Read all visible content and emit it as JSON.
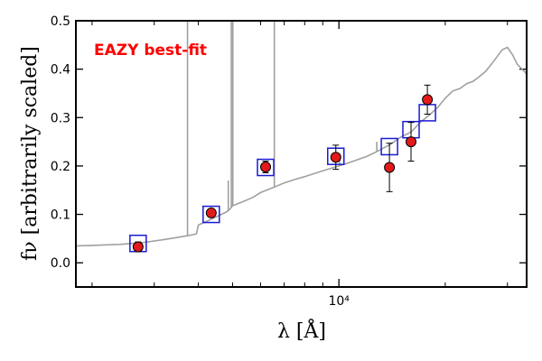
{
  "chart_data": {
    "type": "scatter",
    "annotation": "EAZY best-fit",
    "ylabel": "fν [arbitrarily scaled]",
    "xlabel": "λ [Å]",
    "xscale": "log",
    "xlim": [
      1800,
      34000
    ],
    "ylim": [
      -0.05,
      0.5
    ],
    "yticks": [
      0.0,
      0.1,
      0.2,
      0.3,
      0.4,
      0.5
    ],
    "ytick_labels": [
      "0.0",
      "0.1",
      "0.2",
      "0.3",
      "0.4",
      "0.5"
    ],
    "xtick_major": [
      10000
    ],
    "xtick_major_labels": [
      "10⁴"
    ],
    "xtick_minor": [
      2000,
      3000,
      4000,
      5000,
      6000,
      7000,
      8000,
      9000,
      20000,
      30000
    ],
    "colors": {
      "template": "#a0a0a0",
      "model_box": "#1a1ad6",
      "observed": "#e31a1c",
      "annotation": "#ff0000"
    },
    "series": [
      {
        "kind": "template",
        "points": [
          [
            1800,
            0.035
          ],
          [
            2000,
            0.036
          ],
          [
            2200,
            0.037
          ],
          [
            2400,
            0.038
          ],
          [
            2600,
            0.04
          ],
          [
            2800,
            0.042
          ],
          [
            3000,
            0.045
          ],
          [
            3200,
            0.048
          ],
          [
            3400,
            0.051
          ],
          [
            3600,
            0.054
          ],
          [
            3800,
            0.057
          ],
          [
            3950,
            0.06
          ],
          [
            4000,
            0.078
          ],
          [
            4200,
            0.085
          ],
          [
            4500,
            0.095
          ],
          [
            4800,
            0.105
          ],
          [
            4900,
            0.11
          ],
          [
            5000,
            0.118
          ],
          [
            5300,
            0.125
          ],
          [
            5700,
            0.135
          ],
          [
            6000,
            0.145
          ],
          [
            6500,
            0.155
          ],
          [
            7000,
            0.165
          ],
          [
            7500,
            0.172
          ],
          [
            8000,
            0.178
          ],
          [
            9000,
            0.19
          ],
          [
            10000,
            0.2
          ],
          [
            10500,
            0.205
          ],
          [
            11000,
            0.21
          ],
          [
            12000,
            0.22
          ],
          [
            13000,
            0.232
          ],
          [
            14000,
            0.245
          ],
          [
            15000,
            0.26
          ],
          [
            16000,
            0.27
          ],
          [
            17000,
            0.29
          ],
          [
            18000,
            0.305
          ],
          [
            19000,
            0.32
          ],
          [
            20000,
            0.34
          ],
          [
            21000,
            0.355
          ],
          [
            22000,
            0.36
          ],
          [
            23000,
            0.37
          ],
          [
            24000,
            0.375
          ],
          [
            25000,
            0.385
          ],
          [
            26000,
            0.395
          ],
          [
            27000,
            0.41
          ],
          [
            28000,
            0.425
          ],
          [
            29000,
            0.44
          ],
          [
            30000,
            0.445
          ],
          [
            31000,
            0.43
          ],
          [
            32000,
            0.41
          ],
          [
            33000,
            0.4
          ],
          [
            34000,
            0.39
          ]
        ],
        "emission_lines": [
          {
            "x": 3727,
            "y_top": 0.5
          },
          {
            "x": 4861,
            "y_top": 0.17
          },
          {
            "x": 4959,
            "y_top": 0.5
          },
          {
            "x": 5007,
            "y_top": 0.5
          },
          {
            "x": 6563,
            "y_top": 0.5
          },
          {
            "x": 10050,
            "y_top": 0.22
          },
          {
            "x": 12800,
            "y_top": 0.25
          }
        ]
      },
      {
        "kind": "model_photometry",
        "points": [
          {
            "x": 2700,
            "y": 0.04
          },
          {
            "x": 4350,
            "y": 0.1
          },
          {
            "x": 6200,
            "y": 0.197
          },
          {
            "x": 9800,
            "y": 0.22
          },
          {
            "x": 13900,
            "y": 0.24
          },
          {
            "x": 16000,
            "y": 0.275
          },
          {
            "x": 17800,
            "y": 0.31
          }
        ]
      },
      {
        "kind": "observed_photometry",
        "points": [
          {
            "x": 2700,
            "y": 0.033,
            "err": 0.01
          },
          {
            "x": 4350,
            "y": 0.103,
            "err": 0.008
          },
          {
            "x": 6200,
            "y": 0.198,
            "err": 0.012
          },
          {
            "x": 9800,
            "y": 0.218,
            "err": 0.025
          },
          {
            "x": 13900,
            "y": 0.197,
            "err": 0.05
          },
          {
            "x": 16000,
            "y": 0.25,
            "err": 0.04
          },
          {
            "x": 17800,
            "y": 0.337,
            "err": 0.03
          }
        ]
      }
    ]
  }
}
